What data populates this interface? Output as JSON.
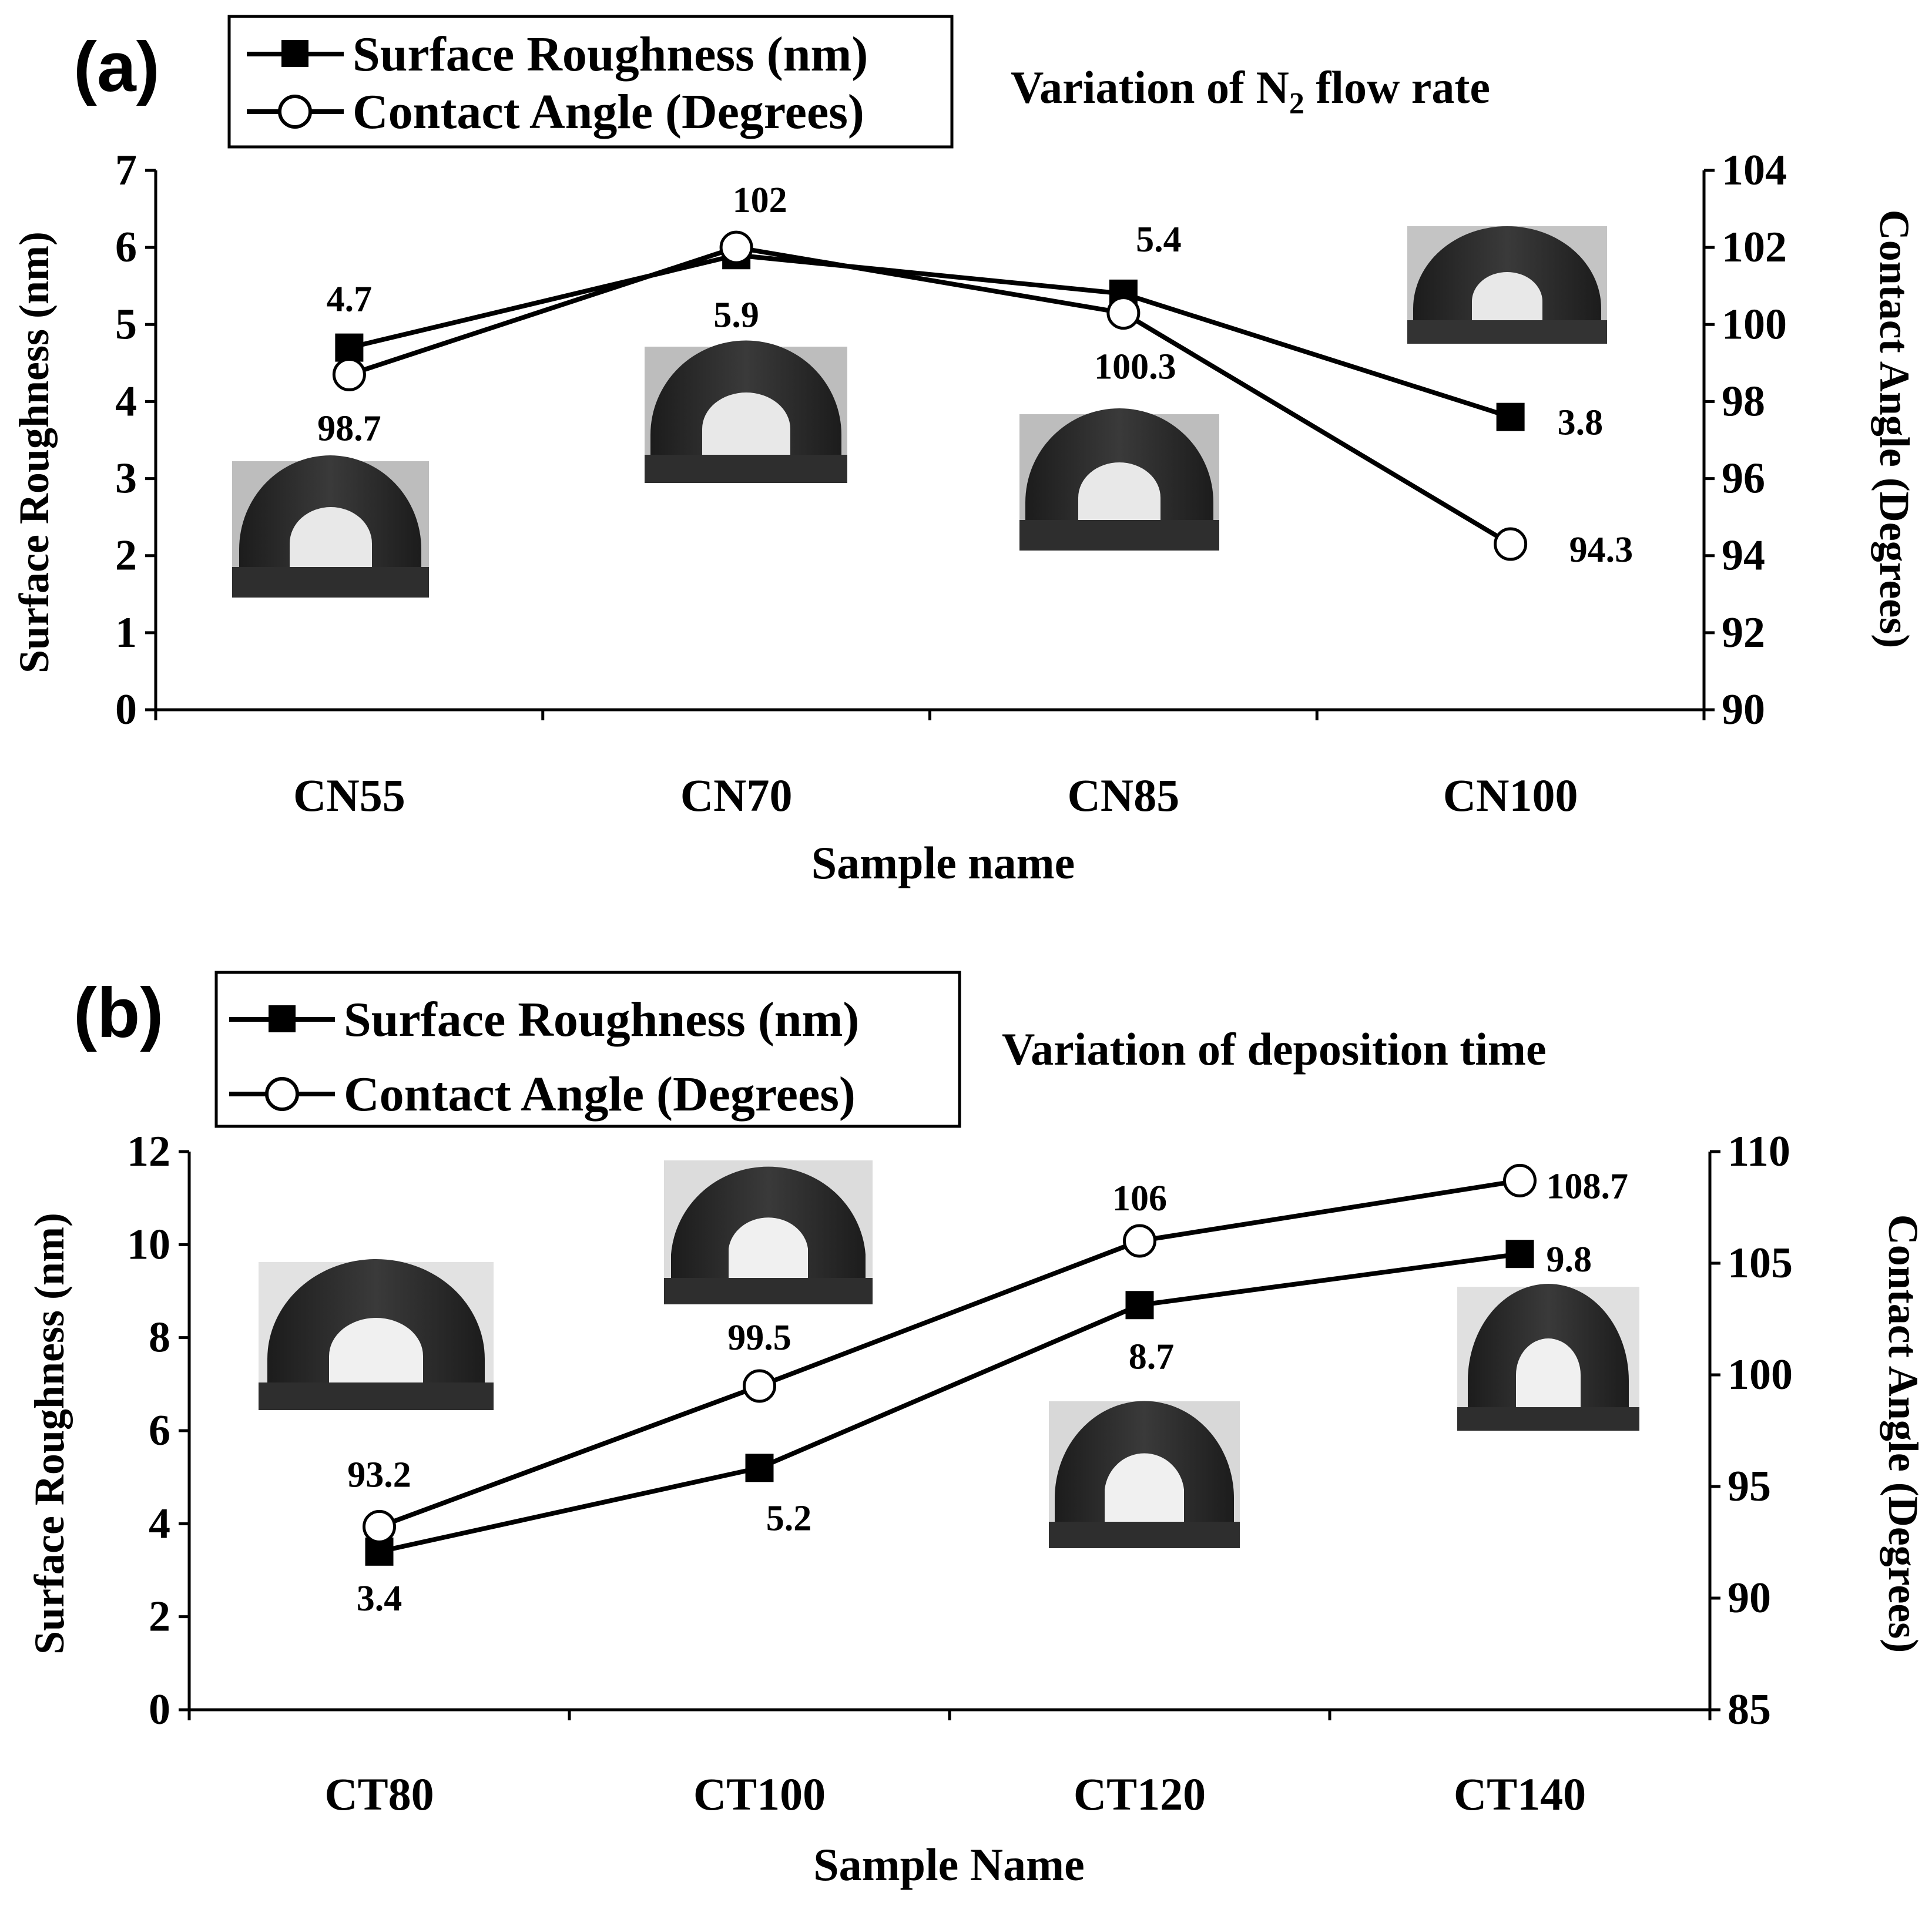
{
  "chart_data": [
    {
      "type": "line",
      "panel_label": "(a)",
      "title": "Variation of ",
      "title_sub": "2",
      "title_tail": " flow rate",
      "title_n": "N",
      "xlabel": "Sample name",
      "ylabel_left": "Surface Roughness (nm)",
      "ylabel_right": "Contact Angle (Degrees)",
      "categories": [
        "CN55",
        "CN70",
        "CN85",
        "CN100"
      ],
      "ylim_left": [
        0,
        7
      ],
      "yticks_left": [
        "0",
        "1",
        "2",
        "3",
        "4",
        "5",
        "6",
        "7"
      ],
      "ylim_right": [
        90,
        104
      ],
      "yticks_right": [
        "90",
        "92",
        "94",
        "96",
        "98",
        "100",
        "102",
        "104"
      ],
      "legend_position": "top-left",
      "series": [
        {
          "name": "Surface Roughness (nm)",
          "axis": "left",
          "marker": "filled-square",
          "values": [
            4.7,
            5.9,
            5.4,
            3.8
          ],
          "labels": [
            "4.7",
            "5.9",
            "5.4",
            "3.8"
          ]
        },
        {
          "name": "Contact Angle (Degrees)",
          "axis": "right",
          "marker": "open-circle",
          "values": [
            98.7,
            102,
            100.3,
            94.3
          ],
          "labels": [
            "98.7",
            "102",
            "100.3",
            "94.3"
          ]
        }
      ]
    },
    {
      "type": "line",
      "panel_label": "(b)",
      "title": "Variation of deposition time",
      "xlabel": "Sample Name",
      "ylabel_left": "Surface Roughness (nm)",
      "ylabel_right": "Contact Angle (Degrees)",
      "categories": [
        "CT80",
        "CT100",
        "CT120",
        "CT140"
      ],
      "ylim_left": [
        0,
        12
      ],
      "yticks_left": [
        "0",
        "2",
        "4",
        "6",
        "8",
        "10",
        "12"
      ],
      "ylim_right": [
        85,
        110
      ],
      "yticks_right": [
        "85",
        "90",
        "95",
        "100",
        "105",
        "110"
      ],
      "legend_position": "top-left",
      "series": [
        {
          "name": "Surface Roughness (nm)",
          "axis": "left",
          "marker": "filled-square",
          "values": [
            3.4,
            5.2,
            8.7,
            9.8
          ],
          "labels": [
            "3.4",
            "5.2",
            "8.7",
            "9.8"
          ]
        },
        {
          "name": "Contact Angle (Degrees)",
          "axis": "right",
          "marker": "open-circle",
          "values": [
            93.2,
            99.5,
            106,
            108.7
          ],
          "labels": [
            "93.2",
            "99.5",
            "106",
            "108.7"
          ]
        }
      ]
    }
  ]
}
